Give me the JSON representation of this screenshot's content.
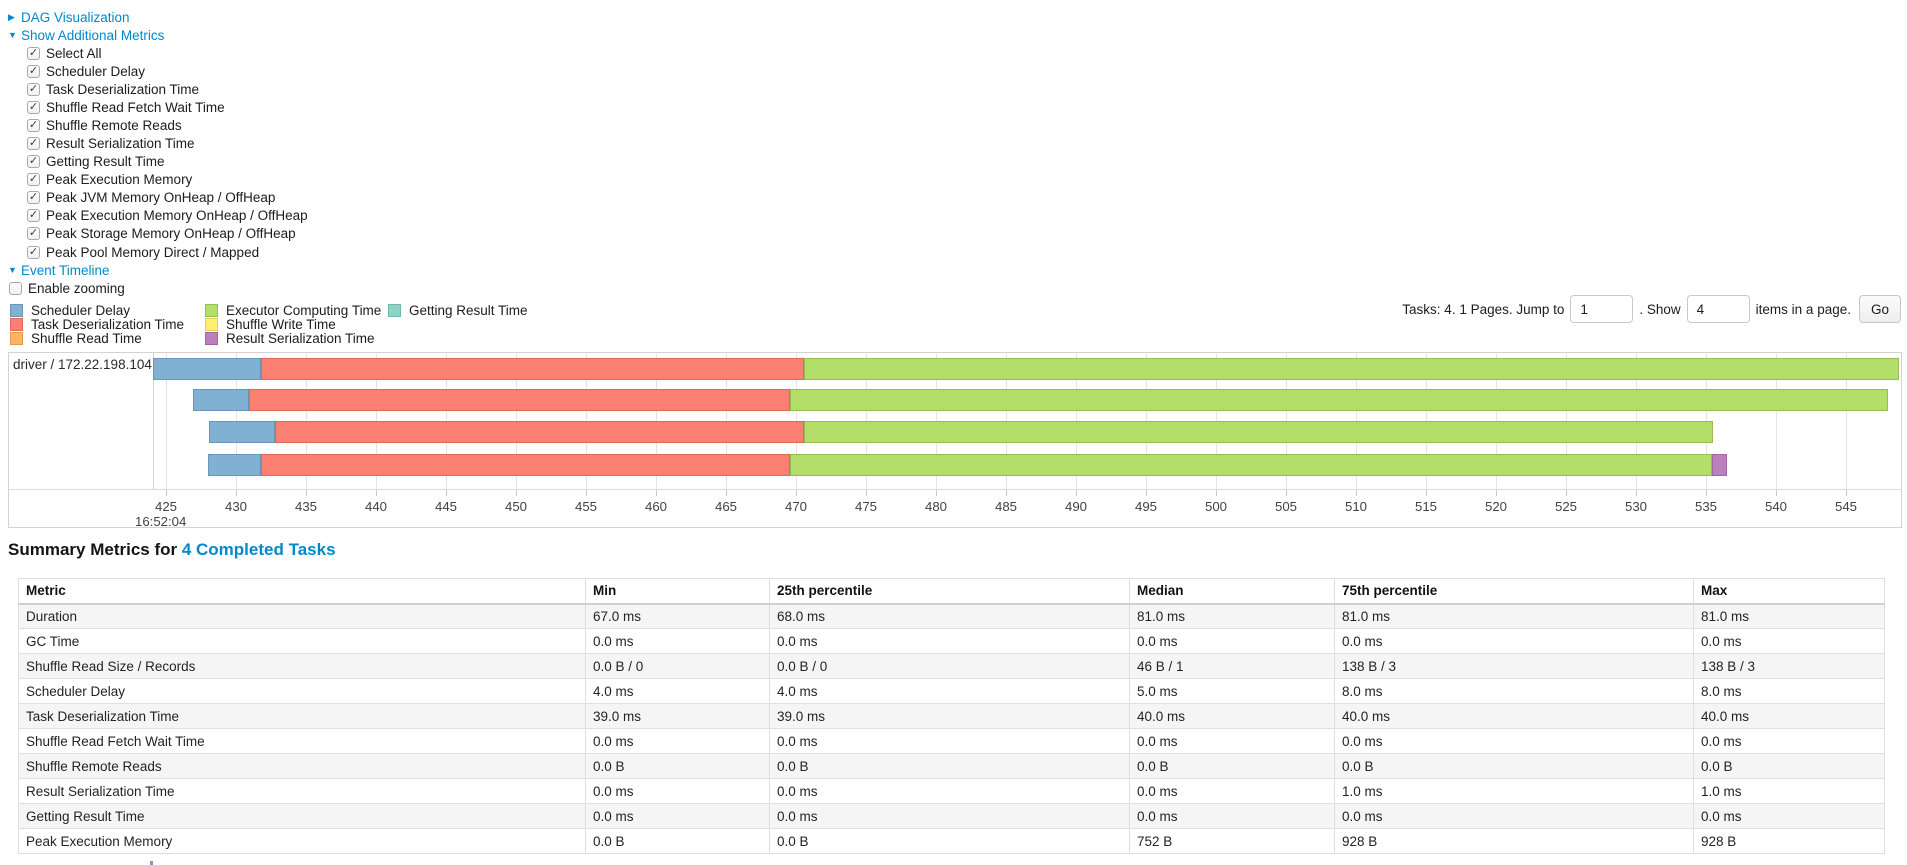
{
  "controls": {
    "dag": {
      "label": "DAG Visualization",
      "state": "collapsed"
    },
    "additional_metrics": {
      "label": "Show Additional Metrics",
      "state": "expanded"
    },
    "metric_checkboxes": [
      {
        "label": "Select All",
        "checked": true
      },
      {
        "label": "Scheduler Delay",
        "checked": true
      },
      {
        "label": "Task Deserialization Time",
        "checked": true
      },
      {
        "label": "Shuffle Read Fetch Wait Time",
        "checked": true
      },
      {
        "label": "Shuffle Remote Reads",
        "checked": true
      },
      {
        "label": "Result Serialization Time",
        "checked": true
      },
      {
        "label": "Getting Result Time",
        "checked": true
      },
      {
        "label": "Peak Execution Memory",
        "checked": true
      },
      {
        "label": "Peak JVM Memory OnHeap / OffHeap",
        "checked": true
      },
      {
        "label": "Peak Execution Memory OnHeap / OffHeap",
        "checked": true
      },
      {
        "label": "Peak Storage Memory OnHeap / OffHeap",
        "checked": true
      },
      {
        "label": "Peak Pool Memory Direct / Mapped",
        "checked": true
      }
    ],
    "event_timeline": {
      "label": "Event Timeline",
      "state": "expanded"
    },
    "enable_zooming": {
      "label": "Enable zooming",
      "checked": false
    }
  },
  "colors": {
    "link": "#0088cc",
    "scheduler-delay": {
      "fill": "#80B1D3",
      "stroke": "#6B94B8"
    },
    "task-deserialization": {
      "fill": "#FB8072",
      "stroke": "#E0685A"
    },
    "shuffle-read": {
      "fill": "#FDB462",
      "stroke": "#E09A4E"
    },
    "executor-computing": {
      "fill": "#B3DE69",
      "stroke": "#94BE52"
    },
    "shuffle-write": {
      "fill": "#FFED6F",
      "stroke": "#E2D058"
    },
    "result-serialization": {
      "fill": "#BC80BD",
      "stroke": "#A267A3"
    },
    "getting-result": {
      "fill": "#8DD3C7",
      "stroke": "#74B6AB"
    }
  },
  "legend_columns": [
    [
      {
        "key": "scheduler-delay",
        "label": "Scheduler Delay"
      },
      {
        "key": "task-deserialization",
        "label": "Task Deserialization Time"
      },
      {
        "key": "shuffle-read",
        "label": "Shuffle Read Time"
      }
    ],
    [
      {
        "key": "executor-computing",
        "label": "Executor Computing Time"
      },
      {
        "key": "shuffle-write",
        "label": "Shuffle Write Time"
      },
      {
        "key": "result-serialization",
        "label": "Result Serialization Time"
      }
    ],
    [
      {
        "key": "getting-result",
        "label": "Getting Result Time"
      }
    ]
  ],
  "pagination": {
    "info": "Tasks: 4. 1 Pages. Jump to",
    "jump_value": "1",
    "show_label": ". Show",
    "show_value": "4",
    "suffix": "items in a page.",
    "go_label": "Go"
  },
  "chart_data": {
    "type": "timeline-gantt",
    "group_label": "driver / 172.22.198.104",
    "x_axis": {
      "tick_min": 425,
      "tick_max": 550,
      "tick_step": 5,
      "major_time_label": "16:52:04",
      "units": "ms within 16:52:04"
    },
    "tasks": [
      {
        "segments": [
          {
            "type": "scheduler-delay",
            "start": 424.1,
            "end": 431.8
          },
          {
            "type": "task-deserialization",
            "start": 431.8,
            "end": 470.6
          },
          {
            "type": "executor-computing",
            "start": 470.6,
            "end": 548.8
          }
        ]
      },
      {
        "segments": [
          {
            "type": "scheduler-delay",
            "start": 426.9,
            "end": 430.9
          },
          {
            "type": "task-deserialization",
            "start": 430.9,
            "end": 469.6
          },
          {
            "type": "executor-computing",
            "start": 469.6,
            "end": 548.0
          }
        ]
      },
      {
        "segments": [
          {
            "type": "scheduler-delay",
            "start": 428.1,
            "end": 432.8
          },
          {
            "type": "task-deserialization",
            "start": 432.8,
            "end": 470.6
          },
          {
            "type": "executor-computing",
            "start": 470.6,
            "end": 535.5
          }
        ]
      },
      {
        "segments": [
          {
            "type": "scheduler-delay",
            "start": 428.0,
            "end": 431.8
          },
          {
            "type": "task-deserialization",
            "start": 431.8,
            "end": 469.6
          },
          {
            "type": "executor-computing",
            "start": 469.6,
            "end": 535.4
          },
          {
            "type": "result-serialization",
            "start": 535.4,
            "end": 536.5
          }
        ]
      }
    ]
  },
  "summary": {
    "title_prefix": "Summary Metrics for ",
    "title_link": "4 Completed Tasks",
    "table": {
      "headers": [
        "Metric",
        "Min",
        "25th percentile",
        "Median",
        "75th percentile",
        "Max"
      ],
      "rows": [
        [
          "Duration",
          "67.0 ms",
          "68.0 ms",
          "81.0 ms",
          "81.0 ms",
          "81.0 ms"
        ],
        [
          "GC Time",
          "0.0 ms",
          "0.0 ms",
          "0.0 ms",
          "0.0 ms",
          "0.0 ms"
        ],
        [
          "Shuffle Read Size / Records",
          "0.0 B / 0",
          "0.0 B / 0",
          "46 B / 1",
          "138 B / 3",
          "138 B / 3"
        ],
        [
          "Scheduler Delay",
          "4.0 ms",
          "4.0 ms",
          "5.0 ms",
          "8.0 ms",
          "8.0 ms"
        ],
        [
          "Task Deserialization Time",
          "39.0 ms",
          "39.0 ms",
          "40.0 ms",
          "40.0 ms",
          "40.0 ms"
        ],
        [
          "Shuffle Read Fetch Wait Time",
          "0.0 ms",
          "0.0 ms",
          "0.0 ms",
          "0.0 ms",
          "0.0 ms"
        ],
        [
          "Shuffle Remote Reads",
          "0.0 B",
          "0.0 B",
          "0.0 B",
          "0.0 B",
          "0.0 B"
        ],
        [
          "Result Serialization Time",
          "0.0 ms",
          "0.0 ms",
          "0.0 ms",
          "1.0 ms",
          "1.0 ms"
        ],
        [
          "Getting Result Time",
          "0.0 ms",
          "0.0 ms",
          "0.0 ms",
          "0.0 ms",
          "0.0 ms"
        ],
        [
          "Peak Execution Memory",
          "0.0 B",
          "0.0 B",
          "752 B",
          "928 B",
          "928 B"
        ]
      ]
    }
  }
}
